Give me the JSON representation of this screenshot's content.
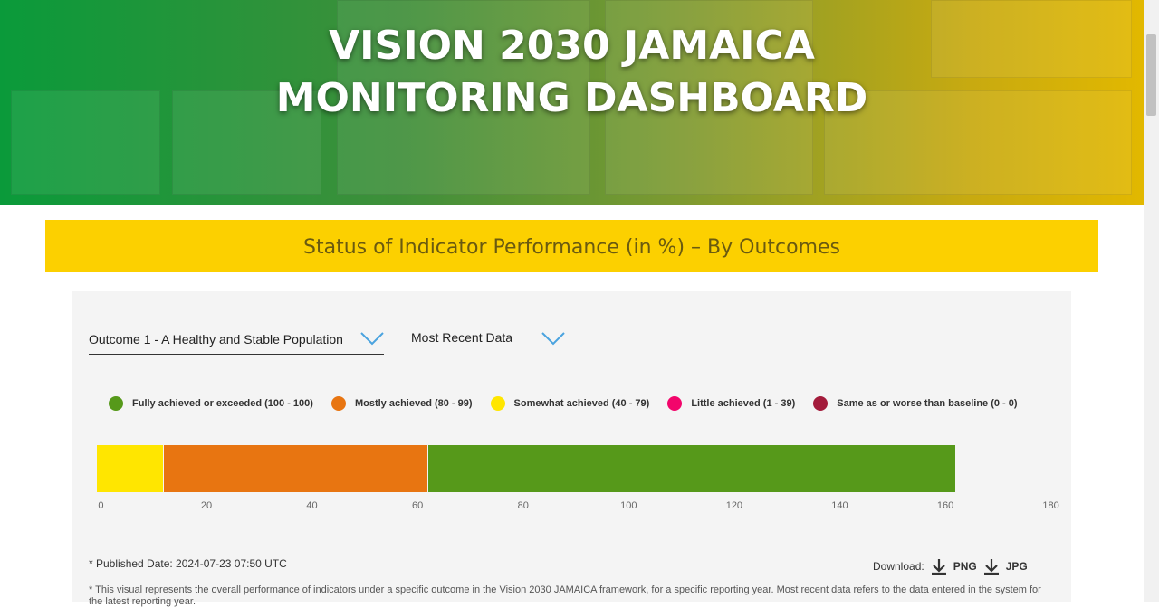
{
  "header": {
    "title_line1": "VISION 2030 JAMAICA",
    "title_line2": "MONITORING DASHBOARD"
  },
  "banner": {
    "title": "Status of Indicator Performance (in %) – By Outcomes"
  },
  "filters": {
    "outcome": "Outcome 1 - A Healthy and Stable Population",
    "period": "Most Recent Data"
  },
  "footer": {
    "published": "* Published Date: 2024-07-23 07:50 UTC",
    "download_label": "Download:",
    "png": "PNG",
    "jpg": "JPG",
    "note": "* This visual represents the overall performance of indicators under a specific outcome in the Vision 2030 JAMAICA framework, for a specific reporting year. Most recent data refers to the data entered in the system for the latest reporting year."
  },
  "chart_data": {
    "type": "bar",
    "orientation": "horizontal",
    "stacked": true,
    "title": "Status of Indicator Performance (in %) – By Outcomes",
    "xlim": [
      0,
      180
    ],
    "ticks": [
      "0",
      "20",
      "40",
      "60",
      "80",
      "100",
      "120",
      "140",
      "160",
      "180"
    ],
    "legend_position": "top",
    "legend": [
      {
        "label": "Fully achieved or exceeded (100 - 100)",
        "color": "#56991a"
      },
      {
        "label": "Mostly achieved (80 - 99)",
        "color": "#e87511"
      },
      {
        "label": "Somewhat achieved (40 - 79)",
        "color": "#ffe600"
      },
      {
        "label": "Little achieved (1 - 39)",
        "color": "#f2056b"
      },
      {
        "label": "Same as or worse than baseline (0 - 0)",
        "color": "#a31b3b"
      }
    ],
    "series": [
      {
        "name": "Somewhat achieved (40 - 79)",
        "value": 12.5,
        "color": "#ffe600"
      },
      {
        "name": "Mostly achieved (80 - 99)",
        "value": 50,
        "color": "#e87511"
      },
      {
        "name": "Fully achieved or exceeded (100 - 100)",
        "value": 100,
        "color": "#56991a"
      }
    ]
  }
}
